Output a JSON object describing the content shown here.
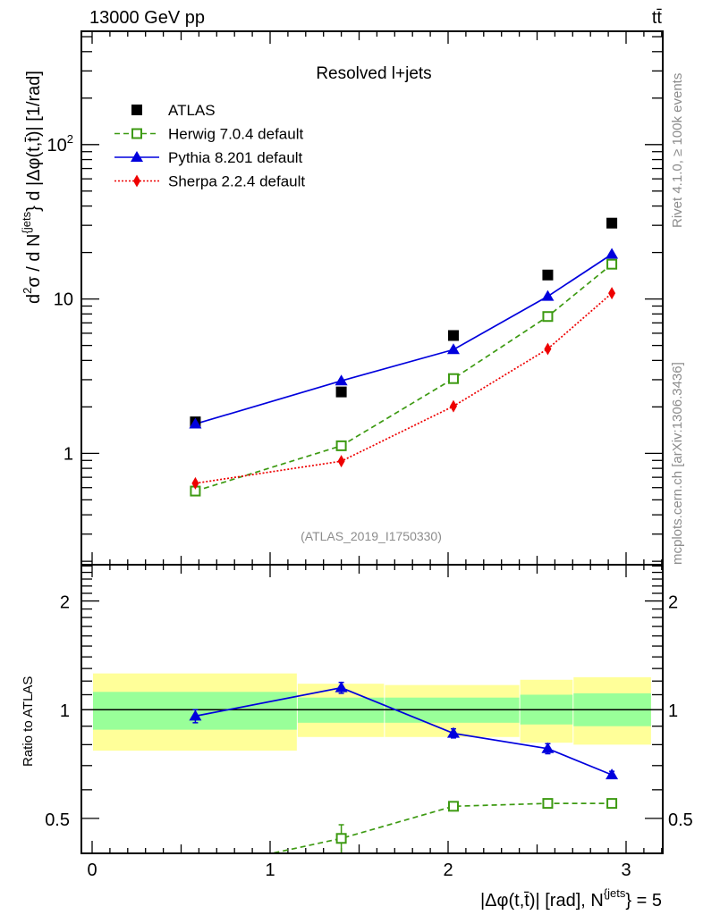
{
  "header": {
    "left_label": "13000 GeV pp",
    "right_label": "tt̄",
    "side_label_top": "Rivet 4.1.0, ≥ 100k events",
    "side_label_bottom": "mcplots.cern.ch [arXiv:1306.3436]"
  },
  "chart_data": [
    {
      "type": "line",
      "panel": "main",
      "title": "Resolved l+jets",
      "analysis_tag": "(ATLAS_2019_I1750330)",
      "xlabel": "",
      "ylabel": "d²σ / d N^{jets} d |Δφ(t,t̄)| [1/rad]",
      "ylabel_parts": {
        "a": "d",
        "a_sup": "2",
        "b": "σ / d N",
        "b_sup": "{jets",
        "c": "} d |Δφ(t,",
        "tbar": "t̄",
        "d": ")| [1/rad]"
      },
      "yscale": "log",
      "ylim": [
        0.19,
        542
      ],
      "xlim": [
        0,
        3.2
      ],
      "y_tick_labels": [
        "1",
        "10",
        "10²"
      ],
      "y_tick_values": [
        1,
        10,
        100
      ],
      "legend_position": "top-left",
      "x": [
        0.58,
        1.4,
        2.03,
        2.56,
        2.92
      ],
      "series": [
        {
          "name": "ATLAS",
          "color": "#000000",
          "marker": "square-filled",
          "line": "none",
          "values": [
            1.6,
            2.5,
            5.8,
            14.3,
            31.0
          ]
        },
        {
          "name": "Herwig 7.0.4 default",
          "color": "#3d9a12",
          "marker": "square-open",
          "line": "dashed",
          "values": [
            0.57,
            1.12,
            3.05,
            7.7,
            16.8
          ]
        },
        {
          "name": "Pythia 8.201 default",
          "color": "#0000dd",
          "marker": "triangle-filled",
          "line": "solid",
          "values": [
            1.55,
            2.95,
            4.7,
            10.4,
            19.5
          ]
        },
        {
          "name": "Sherpa 2.2.4 default",
          "color": "#ee0000",
          "marker": "diamond-filled",
          "line": "dotted",
          "values": [
            0.64,
            0.89,
            2.02,
            4.75,
            10.9
          ]
        }
      ]
    },
    {
      "type": "line",
      "panel": "ratio",
      "ylabel": "Ratio to ATLAS",
      "xlabel": "|Δφ(t,t̄)| [rad], N^{jets} = 5",
      "xlabel_parts": {
        "a": "|Δφ(t,",
        "tbar": "t̄",
        "b": ")| [rad], N",
        "sup": "{jets",
        "c": "} = 5"
      },
      "yscale": "log",
      "ylim": [
        0.4,
        2.52
      ],
      "xlim": [
        0,
        3.2
      ],
      "x_tick_labels": [
        "0",
        "1",
        "2",
        "3"
      ],
      "x_tick_values": [
        0,
        1,
        2,
        3
      ],
      "y_tick_labels": [
        "0.5",
        "1",
        "2"
      ],
      "y_tick_values": [
        0.5,
        1,
        2
      ],
      "reference_line": 1,
      "bins": [
        {
          "x_low": 0.0,
          "x_high": 1.15,
          "band_outer": [
            0.77,
            1.26
          ],
          "band_inner": [
            0.88,
            1.12
          ]
        },
        {
          "x_low": 1.15,
          "x_high": 1.64,
          "band_outer": [
            0.84,
            1.18
          ],
          "band_inner": [
            0.92,
            1.08
          ]
        },
        {
          "x_low": 1.64,
          "x_high": 2.4,
          "band_outer": [
            0.84,
            1.17
          ],
          "band_inner": [
            0.92,
            1.08
          ]
        },
        {
          "x_low": 2.4,
          "x_high": 2.7,
          "band_outer": [
            0.81,
            1.21
          ],
          "band_inner": [
            0.91,
            1.1
          ]
        },
        {
          "x_low": 2.7,
          "x_high": 3.14,
          "band_outer": [
            0.8,
            1.23
          ],
          "band_inner": [
            0.9,
            1.11
          ]
        }
      ],
      "band_colors": {
        "outer": "#ffff99",
        "inner": "#99ff99"
      },
      "x": [
        0.58,
        1.4,
        2.03,
        2.56,
        2.92
      ],
      "series": [
        {
          "name": "Pythia 8.201 default",
          "color": "#0000dd",
          "marker": "triangle-filled",
          "line": "solid",
          "values": [
            0.96,
            1.15,
            0.86,
            0.78,
            0.66
          ],
          "errors": [
            0.04,
            0.04,
            0.025,
            0.025,
            0.015
          ]
        },
        {
          "name": "Herwig 7.0.4 default",
          "color": "#3d9a12",
          "marker": "square-open",
          "line": "dashed",
          "values": [
            0.36,
            0.44,
            0.54,
            0.55,
            0.55
          ],
          "errors": [
            0.0,
            0.04,
            0.015,
            0.015,
            0.0
          ]
        }
      ]
    }
  ]
}
